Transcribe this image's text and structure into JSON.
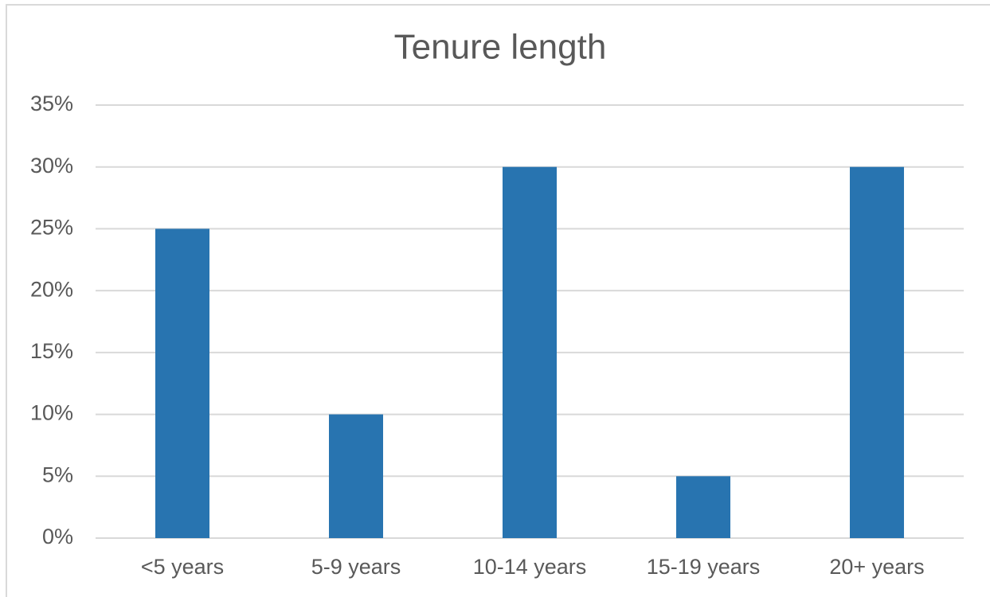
{
  "chart_data": {
    "type": "bar",
    "title": "Tenure length",
    "categories": [
      "<5 years",
      "5-9 years",
      "10-14 years",
      "15-19 years",
      "20+ years"
    ],
    "values": [
      25,
      10,
      30,
      5,
      30
    ],
    "color": "#2874b0",
    "ylim": [
      0,
      35
    ],
    "yticks": [
      {
        "value": 0,
        "label": "0%"
      },
      {
        "value": 5,
        "label": "5%"
      },
      {
        "value": 10,
        "label": "10%"
      },
      {
        "value": 15,
        "label": "15%"
      },
      {
        "value": 20,
        "label": "20%"
      },
      {
        "value": 25,
        "label": "25%"
      },
      {
        "value": 30,
        "label": "30%"
      },
      {
        "value": 35,
        "label": "35%"
      }
    ],
    "grid": true
  }
}
